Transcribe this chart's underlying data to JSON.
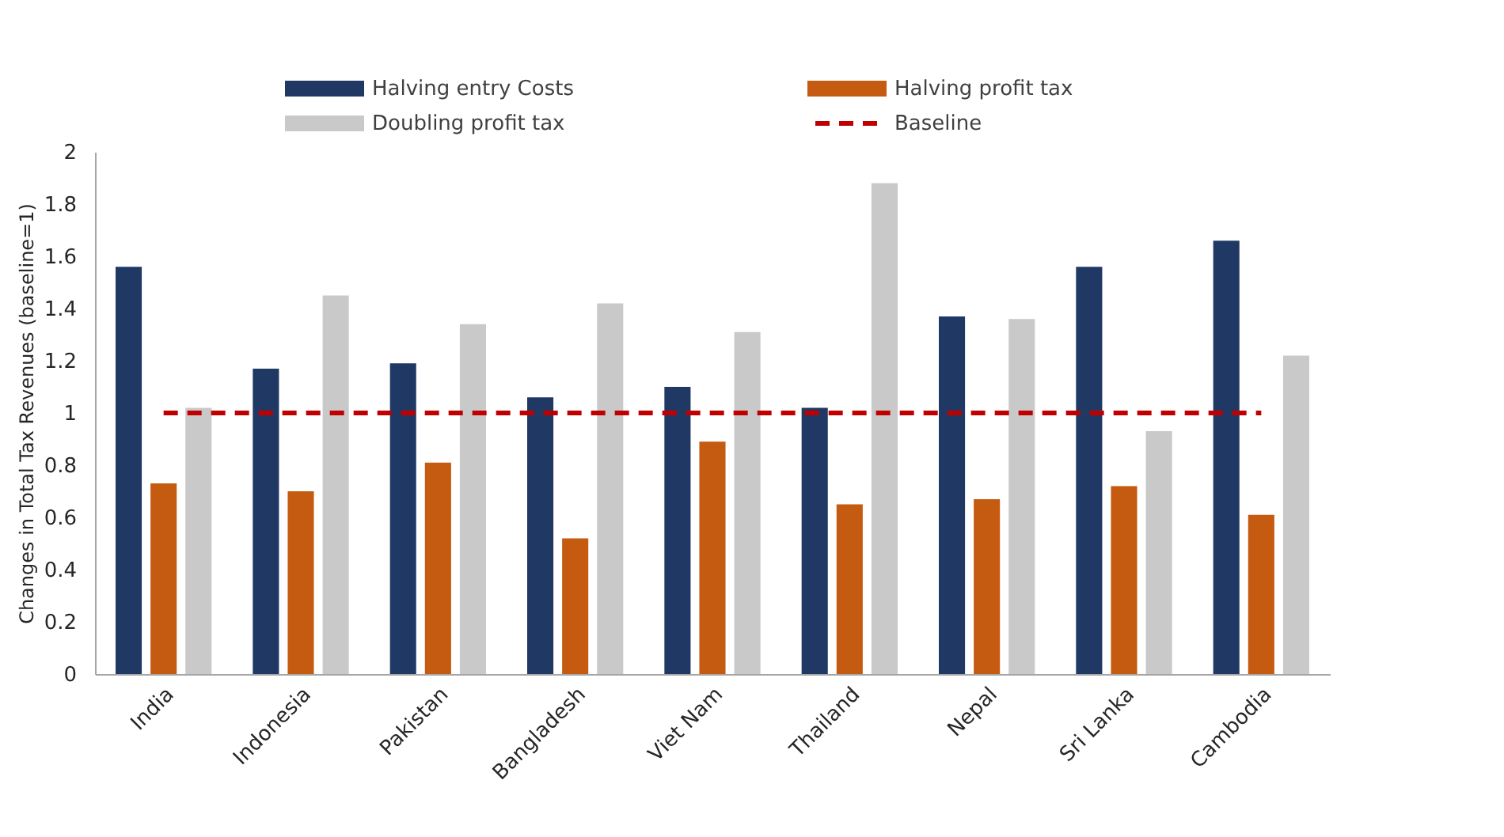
{
  "chart_data": {
    "type": "bar",
    "ylabel": "Changes in Total Tax Revenues (baseline=1)",
    "categories": [
      "India",
      "Indonesia",
      "Pakistan",
      "Bangladesh",
      "Viet Nam",
      "Thailand",
      "Nepal",
      "Sri Lanka",
      "Cambodia"
    ],
    "series": [
      {
        "name": "Halving entry Costs",
        "color": "#1f3864",
        "values": [
          1.56,
          1.17,
          1.19,
          1.06,
          1.1,
          1.02,
          1.37,
          1.56,
          1.66
        ]
      },
      {
        "name": "Halving profit tax",
        "color": "#c55a11",
        "values": [
          0.73,
          0.7,
          0.81,
          0.52,
          0.89,
          0.65,
          0.67,
          0.72,
          0.61
        ]
      },
      {
        "name": "Doubling profit tax",
        "color": "#c9c9c9",
        "values": [
          1.02,
          1.45,
          1.34,
          1.42,
          1.31,
          1.88,
          1.36,
          0.93,
          1.22
        ]
      }
    ],
    "ref_lines": [
      {
        "axis": "y",
        "value": 1,
        "label": "Baseline",
        "color": "#c00000",
        "line_style": "dashed"
      }
    ],
    "ylim": [
      0,
      2
    ],
    "yticks": [
      0,
      0.2,
      0.4,
      0.6,
      0.8,
      1,
      1.2,
      1.4,
      1.6,
      1.8,
      2
    ],
    "grid": false,
    "legend": "top"
  }
}
